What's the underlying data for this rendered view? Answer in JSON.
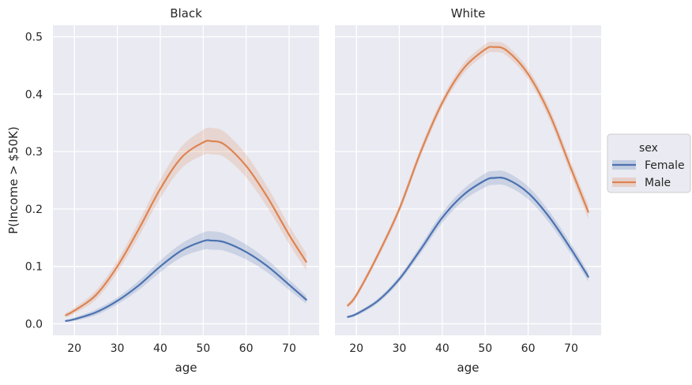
{
  "chart_data": {
    "type": "line",
    "ylabel": "P(Income > $50K)",
    "xlabel": "age",
    "xlim": [
      15,
      77
    ],
    "ylim": [
      -0.02,
      0.52
    ],
    "x_ticks": [
      20,
      30,
      40,
      50,
      60,
      70
    ],
    "y_ticks": [
      0.0,
      0.1,
      0.2,
      0.3,
      0.4,
      0.5
    ],
    "y_tick_labels": [
      "0.0",
      "0.1",
      "0.2",
      "0.3",
      "0.4",
      "0.5"
    ],
    "grid": true,
    "legend": {
      "title": "sex",
      "placement": "outside-right",
      "entries": [
        "Female",
        "Male"
      ]
    },
    "colors": {
      "Female": "#4c72b0",
      "Male": "#dd8452"
    },
    "panels": [
      {
        "title": "Black",
        "x": [
          18,
          20,
          25,
          30,
          35,
          40,
          45,
          50,
          52,
          55,
          60,
          65,
          70,
          74
        ],
        "series": [
          {
            "name": "Female",
            "values": [
              0.005,
              0.008,
              0.02,
              0.04,
              0.067,
              0.1,
              0.128,
              0.144,
              0.145,
              0.142,
              0.125,
              0.1,
              0.068,
              0.042
            ],
            "ci_halfwidth": [
              0.002,
              0.003,
              0.005,
              0.006,
              0.008,
              0.01,
              0.012,
              0.015,
              0.016,
              0.015,
              0.013,
              0.011,
              0.009,
              0.007
            ]
          },
          {
            "name": "Male",
            "values": [
              0.015,
              0.023,
              0.05,
              0.1,
              0.165,
              0.235,
              0.29,
              0.316,
              0.318,
              0.312,
              0.275,
              0.22,
              0.155,
              0.108
            ],
            "ci_halfwidth": [
              0.004,
              0.005,
              0.008,
              0.01,
              0.013,
              0.016,
              0.019,
              0.022,
              0.023,
              0.022,
              0.02,
              0.018,
              0.016,
              0.015
            ]
          }
        ]
      },
      {
        "title": "White",
        "x": [
          18,
          20,
          25,
          30,
          35,
          40,
          45,
          50,
          52,
          55,
          60,
          65,
          70,
          74
        ],
        "series": [
          {
            "name": "Female",
            "values": [
              0.012,
              0.017,
              0.04,
              0.078,
              0.13,
              0.185,
              0.225,
              0.25,
              0.254,
              0.252,
              0.228,
              0.185,
              0.13,
              0.082
            ],
            "ci_halfwidth": [
              0.002,
              0.003,
              0.004,
              0.005,
              0.007,
              0.009,
              0.01,
              0.012,
              0.012,
              0.012,
              0.011,
              0.01,
              0.009,
              0.008
            ]
          },
          {
            "name": "Male",
            "values": [
              0.032,
              0.05,
              0.12,
              0.2,
              0.3,
              0.385,
              0.445,
              0.478,
              0.482,
              0.476,
              0.435,
              0.365,
              0.27,
              0.195
            ],
            "ci_halfwidth": [
              0.004,
              0.005,
              0.006,
              0.007,
              0.008,
              0.008,
              0.009,
              0.009,
              0.009,
              0.009,
              0.009,
              0.01,
              0.011,
              0.012
            ]
          }
        ]
      }
    ]
  }
}
